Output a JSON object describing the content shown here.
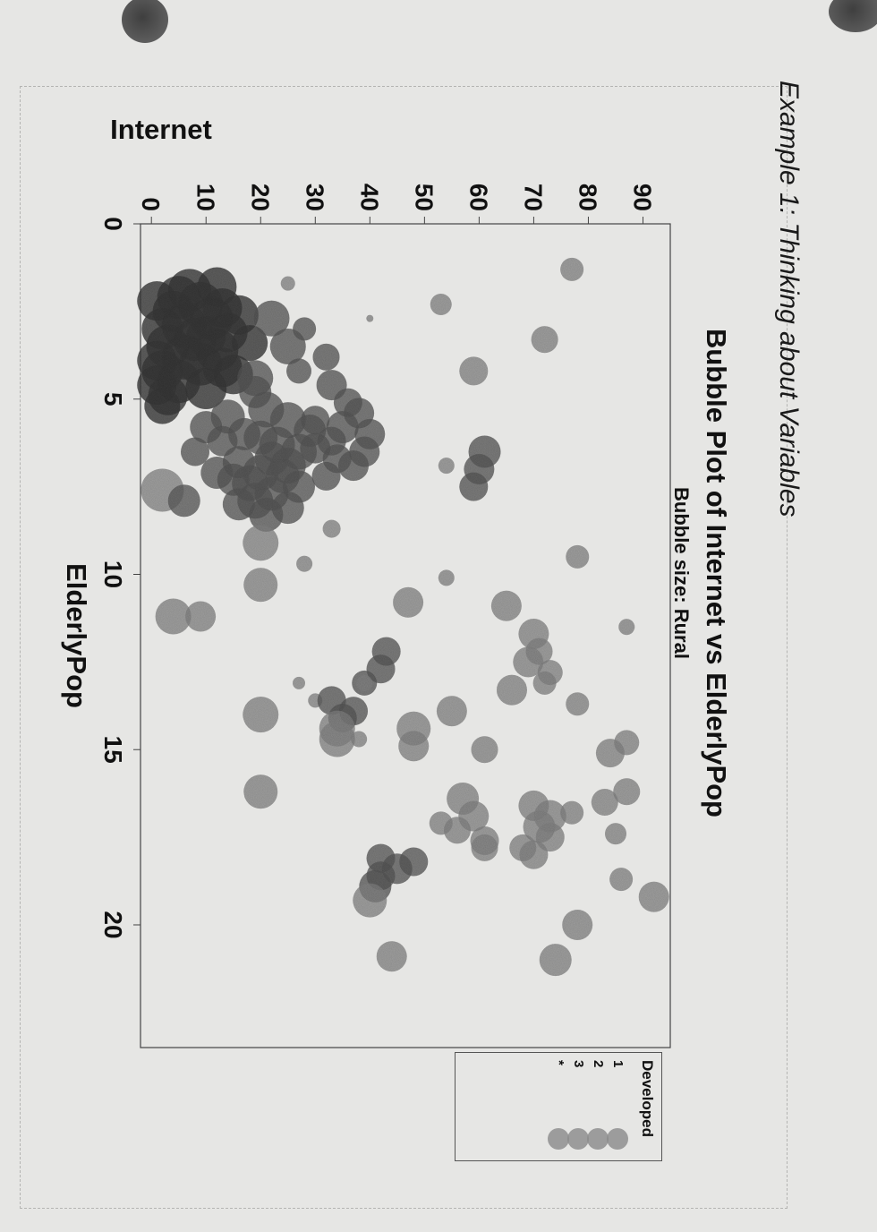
{
  "page": {
    "heading": "Example 1: Thinking about Variables"
  },
  "chart_data": {
    "type": "scatter",
    "title": "Bubble Plot of Internet vs ElderlyPop",
    "subtitle": "Bubble size: Rural",
    "xlabel": "ElderlyPop",
    "ylabel": "Internet",
    "xlim": [
      0,
      23.5
    ],
    "ylim": [
      -2,
      95
    ],
    "x_ticks": [
      0,
      5,
      10,
      15,
      20
    ],
    "y_ticks": [
      0,
      10,
      20,
      30,
      40,
      50,
      60,
      70,
      80,
      90
    ],
    "grid": false,
    "legend_position": "right",
    "legend": {
      "title": "Developed",
      "entries": [
        "1",
        "2",
        "3",
        "*"
      ]
    },
    "colors": {
      "dark": "#3d3d3d",
      "mid": "#5c5c5c",
      "light": "#8c8c8c"
    },
    "points": [
      {
        "x": 1.9,
        "y": 7,
        "size": 24,
        "group": 1
      },
      {
        "x": 2.1,
        "y": 5,
        "size": 24,
        "group": 1
      },
      {
        "x": 2.3,
        "y": 9,
        "size": 25,
        "group": 1
      },
      {
        "x": 2.5,
        "y": 4,
        "size": 23,
        "group": 1
      },
      {
        "x": 2.7,
        "y": 11,
        "size": 24,
        "group": 1
      },
      {
        "x": 2.9,
        "y": 6,
        "size": 25,
        "group": 1
      },
      {
        "x": 3.0,
        "y": 2,
        "size": 23,
        "group": 1
      },
      {
        "x": 3.1,
        "y": 14,
        "size": 22,
        "group": 1
      },
      {
        "x": 3.3,
        "y": 8,
        "size": 24,
        "group": 1
      },
      {
        "x": 3.5,
        "y": 3,
        "size": 24,
        "group": 1
      },
      {
        "x": 3.6,
        "y": 12,
        "size": 24,
        "group": 1
      },
      {
        "x": 3.8,
        "y": 6,
        "size": 25,
        "group": 1
      },
      {
        "x": 4.0,
        "y": 9,
        "size": 24,
        "group": 1
      },
      {
        "x": 4.2,
        "y": 2,
        "size": 23,
        "group": 1
      },
      {
        "x": 4.3,
        "y": 15,
        "size": 22,
        "group": 1
      },
      {
        "x": 4.5,
        "y": 5,
        "size": 24,
        "group": 1
      },
      {
        "x": 4.7,
        "y": 10,
        "size": 23,
        "group": 1
      },
      {
        "x": 2.2,
        "y": 1,
        "size": 22,
        "group": 1
      },
      {
        "x": 2.6,
        "y": 16,
        "size": 22,
        "group": 1
      },
      {
        "x": 3.4,
        "y": 18,
        "size": 20,
        "group": 1
      },
      {
        "x": 3.9,
        "y": 1,
        "size": 22,
        "group": 1
      },
      {
        "x": 4.1,
        "y": 13,
        "size": 22,
        "group": 1
      },
      {
        "x": 1.8,
        "y": 12,
        "size": 22,
        "group": 1
      },
      {
        "x": 2.4,
        "y": 13,
        "size": 22,
        "group": 1
      },
      {
        "x": 3.2,
        "y": 10,
        "size": 22,
        "group": 1
      },
      {
        "x": 4.6,
        "y": 1,
        "size": 22,
        "group": 1
      },
      {
        "x": 4.9,
        "y": 3,
        "size": 22,
        "group": 1
      },
      {
        "x": 5.2,
        "y": 2,
        "size": 20,
        "group": 1
      },
      {
        "x": 2.7,
        "y": 22,
        "size": 20,
        "group": 2
      },
      {
        "x": 3.5,
        "y": 25,
        "size": 20,
        "group": 2
      },
      {
        "x": 4.4,
        "y": 19,
        "size": 20,
        "group": 2
      },
      {
        "x": 5.5,
        "y": 14,
        "size": 19,
        "group": 2
      },
      {
        "x": 5.8,
        "y": 10,
        "size": 18,
        "group": 2
      },
      {
        "x": 6.2,
        "y": 13,
        "size": 17,
        "group": 2
      },
      {
        "x": 6.5,
        "y": 8,
        "size": 16,
        "group": 2
      },
      {
        "x": 7.1,
        "y": 12,
        "size": 18,
        "group": 2
      },
      {
        "x": 7.6,
        "y": 2,
        "size": 24,
        "group": 3
      },
      {
        "x": 7.9,
        "y": 6,
        "size": 18,
        "group": 2
      },
      {
        "x": 4.8,
        "y": 19,
        "size": 18,
        "group": 2
      },
      {
        "x": 5.3,
        "y": 21,
        "size": 20,
        "group": 2
      },
      {
        "x": 5.6,
        "y": 25,
        "size": 20,
        "group": 2
      },
      {
        "x": 5.9,
        "y": 29,
        "size": 18,
        "group": 2
      },
      {
        "x": 6.1,
        "y": 20,
        "size": 19,
        "group": 2
      },
      {
        "x": 6.3,
        "y": 23,
        "size": 20,
        "group": 2
      },
      {
        "x": 6.5,
        "y": 27,
        "size": 20,
        "group": 2
      },
      {
        "x": 6.7,
        "y": 22,
        "size": 19,
        "group": 2
      },
      {
        "x": 6.9,
        "y": 25,
        "size": 20,
        "group": 2
      },
      {
        "x": 7.1,
        "y": 20,
        "size": 20,
        "group": 2
      },
      {
        "x": 7.2,
        "y": 24,
        "size": 19,
        "group": 2
      },
      {
        "x": 7.4,
        "y": 18,
        "size": 20,
        "group": 2
      },
      {
        "x": 7.5,
        "y": 27,
        "size": 18,
        "group": 2
      },
      {
        "x": 7.7,
        "y": 22,
        "size": 19,
        "group": 2
      },
      {
        "x": 7.9,
        "y": 19,
        "size": 20,
        "group": 2
      },
      {
        "x": 8.1,
        "y": 25,
        "size": 18,
        "group": 2
      },
      {
        "x": 8.3,
        "y": 21,
        "size": 19,
        "group": 2
      },
      {
        "x": 6.0,
        "y": 17,
        "size": 18,
        "group": 2
      },
      {
        "x": 6.8,
        "y": 16,
        "size": 18,
        "group": 2
      },
      {
        "x": 7.3,
        "y": 15,
        "size": 18,
        "group": 2
      },
      {
        "x": 8.0,
        "y": 16,
        "size": 18,
        "group": 2
      },
      {
        "x": 6.4,
        "y": 30,
        "size": 17,
        "group": 2
      },
      {
        "x": 4.6,
        "y": 33,
        "size": 17,
        "group": 2
      },
      {
        "x": 5.1,
        "y": 36,
        "size": 16,
        "group": 2
      },
      {
        "x": 5.4,
        "y": 38,
        "size": 17,
        "group": 2
      },
      {
        "x": 5.8,
        "y": 35,
        "size": 18,
        "group": 2
      },
      {
        "x": 6.0,
        "y": 40,
        "size": 17,
        "group": 2
      },
      {
        "x": 6.2,
        "y": 33,
        "size": 16,
        "group": 2
      },
      {
        "x": 6.5,
        "y": 39,
        "size": 17,
        "group": 2
      },
      {
        "x": 6.7,
        "y": 34,
        "size": 16,
        "group": 2
      },
      {
        "x": 6.9,
        "y": 37,
        "size": 17,
        "group": 2
      },
      {
        "x": 7.2,
        "y": 32,
        "size": 16,
        "group": 2
      },
      {
        "x": 5.6,
        "y": 30,
        "size": 16,
        "group": 2
      },
      {
        "x": 3.8,
        "y": 32,
        "size": 15,
        "group": 2
      },
      {
        "x": 3.0,
        "y": 28,
        "size": 13,
        "group": 2
      },
      {
        "x": 4.2,
        "y": 27,
        "size": 14,
        "group": 2
      },
      {
        "x": 1.7,
        "y": 25,
        "size": 8,
        "group": 3
      },
      {
        "x": 2.7,
        "y": 40,
        "size": 4,
        "group": 3
      },
      {
        "x": 2.3,
        "y": 53,
        "size": 12,
        "group": 3
      },
      {
        "x": 4.2,
        "y": 59,
        "size": 16,
        "group": 3
      },
      {
        "x": 3.3,
        "y": 72,
        "size": 15,
        "group": 3
      },
      {
        "x": 1.3,
        "y": 77,
        "size": 13,
        "group": 3
      },
      {
        "x": 6.5,
        "y": 61,
        "size": 18,
        "group": 2
      },
      {
        "x": 7.0,
        "y": 60,
        "size": 17,
        "group": 2
      },
      {
        "x": 7.5,
        "y": 59,
        "size": 16,
        "group": 2
      },
      {
        "x": 6.9,
        "y": 54,
        "size": 9,
        "group": 3
      },
      {
        "x": 8.7,
        "y": 33,
        "size": 10,
        "group": 3
      },
      {
        "x": 9.1,
        "y": 20,
        "size": 20,
        "group": 3
      },
      {
        "x": 9.7,
        "y": 28,
        "size": 9,
        "group": 3
      },
      {
        "x": 10.3,
        "y": 20,
        "size": 19,
        "group": 3
      },
      {
        "x": 10.1,
        "y": 54,
        "size": 9,
        "group": 3
      },
      {
        "x": 10.8,
        "y": 47,
        "size": 17,
        "group": 3
      },
      {
        "x": 9.5,
        "y": 78,
        "size": 13,
        "group": 3
      },
      {
        "x": 10.9,
        "y": 65,
        "size": 17,
        "group": 3
      },
      {
        "x": 11.5,
        "y": 87,
        "size": 9,
        "group": 3
      },
      {
        "x": 11.2,
        "y": 4,
        "size": 20,
        "group": 3
      },
      {
        "x": 11.2,
        "y": 9,
        "size": 17,
        "group": 3
      },
      {
        "x": 11.7,
        "y": 70,
        "size": 17,
        "group": 3
      },
      {
        "x": 12.2,
        "y": 71,
        "size": 15,
        "group": 3
      },
      {
        "x": 12.5,
        "y": 69,
        "size": 17,
        "group": 3
      },
      {
        "x": 12.8,
        "y": 73,
        "size": 14,
        "group": 3
      },
      {
        "x": 13.1,
        "y": 72,
        "size": 13,
        "group": 3
      },
      {
        "x": 13.3,
        "y": 66,
        "size": 17,
        "group": 3
      },
      {
        "x": 13.7,
        "y": 78,
        "size": 13,
        "group": 3
      },
      {
        "x": 12.2,
        "y": 43,
        "size": 16,
        "group": 2
      },
      {
        "x": 12.7,
        "y": 42,
        "size": 16,
        "group": 2
      },
      {
        "x": 13.1,
        "y": 39,
        "size": 14,
        "group": 2
      },
      {
        "x": 13.6,
        "y": 30,
        "size": 8,
        "group": 3
      },
      {
        "x": 13.1,
        "y": 27,
        "size": 7,
        "group": 3
      },
      {
        "x": 13.6,
        "y": 33,
        "size": 16,
        "group": 2
      },
      {
        "x": 14.1,
        "y": 35,
        "size": 16,
        "group": 2
      },
      {
        "x": 13.9,
        "y": 37,
        "size": 16,
        "group": 2
      },
      {
        "x": 14.4,
        "y": 34,
        "size": 20,
        "group": 3
      },
      {
        "x": 14.7,
        "y": 34,
        "size": 20,
        "group": 3
      },
      {
        "x": 13.9,
        "y": 55,
        "size": 17,
        "group": 3
      },
      {
        "x": 13.1,
        "y": 39,
        "size": 9,
        "group": 3
      },
      {
        "x": 14.4,
        "y": 48,
        "size": 19,
        "group": 3
      },
      {
        "x": 14.9,
        "y": 48,
        "size": 17,
        "group": 3
      },
      {
        "x": 15.0,
        "y": 61,
        "size": 15,
        "group": 3
      },
      {
        "x": 14.0,
        "y": 20,
        "size": 20,
        "group": 3
      },
      {
        "x": 14.7,
        "y": 38,
        "size": 9,
        "group": 3
      },
      {
        "x": 15.1,
        "y": 84,
        "size": 16,
        "group": 3
      },
      {
        "x": 14.8,
        "y": 87,
        "size": 14,
        "group": 3
      },
      {
        "x": 16.2,
        "y": 87,
        "size": 15,
        "group": 3
      },
      {
        "x": 16.8,
        "y": 77,
        "size": 13,
        "group": 3
      },
      {
        "x": 16.5,
        "y": 83,
        "size": 15,
        "group": 3
      },
      {
        "x": 17.4,
        "y": 85,
        "size": 12,
        "group": 3
      },
      {
        "x": 16.4,
        "y": 57,
        "size": 18,
        "group": 3
      },
      {
        "x": 16.9,
        "y": 59,
        "size": 17,
        "group": 3
      },
      {
        "x": 17.3,
        "y": 56,
        "size": 15,
        "group": 3
      },
      {
        "x": 17.6,
        "y": 61,
        "size": 16,
        "group": 3
      },
      {
        "x": 17.1,
        "y": 53,
        "size": 13,
        "group": 3
      },
      {
        "x": 17.8,
        "y": 61,
        "size": 15,
        "group": 3
      },
      {
        "x": 16.6,
        "y": 70,
        "size": 17,
        "group": 3
      },
      {
        "x": 16.9,
        "y": 73,
        "size": 18,
        "group": 3
      },
      {
        "x": 17.2,
        "y": 71,
        "size": 18,
        "group": 3
      },
      {
        "x": 17.5,
        "y": 73,
        "size": 16,
        "group": 3
      },
      {
        "x": 17.8,
        "y": 68,
        "size": 15,
        "group": 3
      },
      {
        "x": 18.0,
        "y": 70,
        "size": 16,
        "group": 3
      },
      {
        "x": 16.2,
        "y": 20,
        "size": 19,
        "group": 3
      },
      {
        "x": 18.1,
        "y": 42,
        "size": 16,
        "group": 2
      },
      {
        "x": 18.4,
        "y": 45,
        "size": 17,
        "group": 2
      },
      {
        "x": 18.6,
        "y": 42,
        "size": 16,
        "group": 2
      },
      {
        "x": 18.2,
        "y": 48,
        "size": 16,
        "group": 2
      },
      {
        "x": 18.9,
        "y": 41,
        "size": 18,
        "group": 2
      },
      {
        "x": 19.3,
        "y": 40,
        "size": 19,
        "group": 3
      },
      {
        "x": 18.7,
        "y": 86,
        "size": 13,
        "group": 3
      },
      {
        "x": 19.2,
        "y": 92,
        "size": 17,
        "group": 3
      },
      {
        "x": 20.0,
        "y": 78,
        "size": 17,
        "group": 3
      },
      {
        "x": 21.0,
        "y": 74,
        "size": 18,
        "group": 3
      },
      {
        "x": 20.9,
        "y": 44,
        "size": 17,
        "group": 3
      }
    ]
  }
}
